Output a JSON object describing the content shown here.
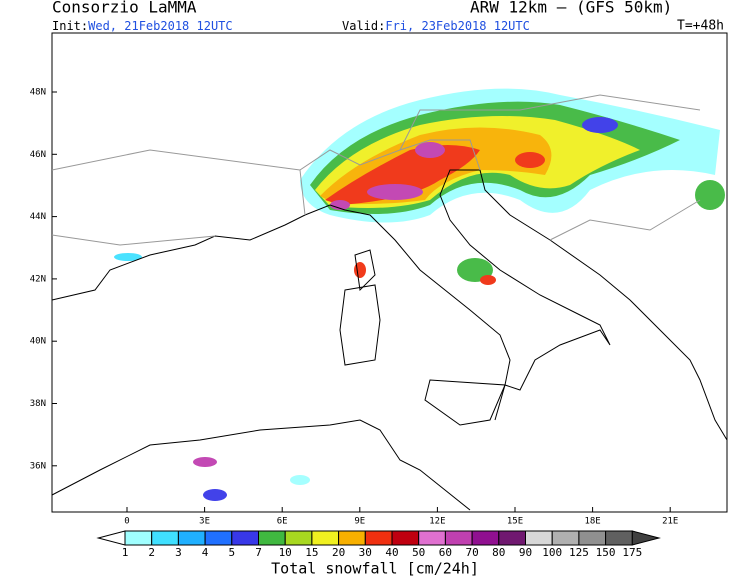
{
  "header": {
    "title": "Consorzio LaMMA",
    "model": "ARW 12km  –  (GFS 50km)",
    "init_label": "Init:",
    "init": "Wed, 21Feb2018 12UTC",
    "valid_label": "Valid:",
    "valid": "Fri, 23Feb2018 12UTC",
    "lead": "T=+48h"
  },
  "map": {
    "lat_labels": [
      "48N",
      "46N",
      "44N",
      "42N",
      "40N",
      "38N",
      "36N"
    ],
    "lon_labels": [
      "0",
      "3E",
      "6E",
      "9E",
      "12E",
      "15E",
      "18E",
      "21E"
    ]
  },
  "colorbar": {
    "labels": [
      1,
      2,
      3,
      4,
      5,
      7,
      10,
      15,
      20,
      30,
      40,
      50,
      60,
      70,
      80,
      90,
      100,
      125,
      150,
      175
    ],
    "colors": [
      "#ffffff",
      "#a0ffff",
      "#40e0ff",
      "#20b0ff",
      "#2070ff",
      "#3838e8",
      "#40b840",
      "#a8d820",
      "#f0f020",
      "#f8b000",
      "#f03010",
      "#c00010",
      "#e070d0",
      "#c040b0",
      "#901090",
      "#701870",
      "#d8d8d8",
      "#b0b0b0",
      "#909090",
      "#606060",
      "#404040"
    ],
    "title": "Total snowfall [cm/24h]"
  }
}
